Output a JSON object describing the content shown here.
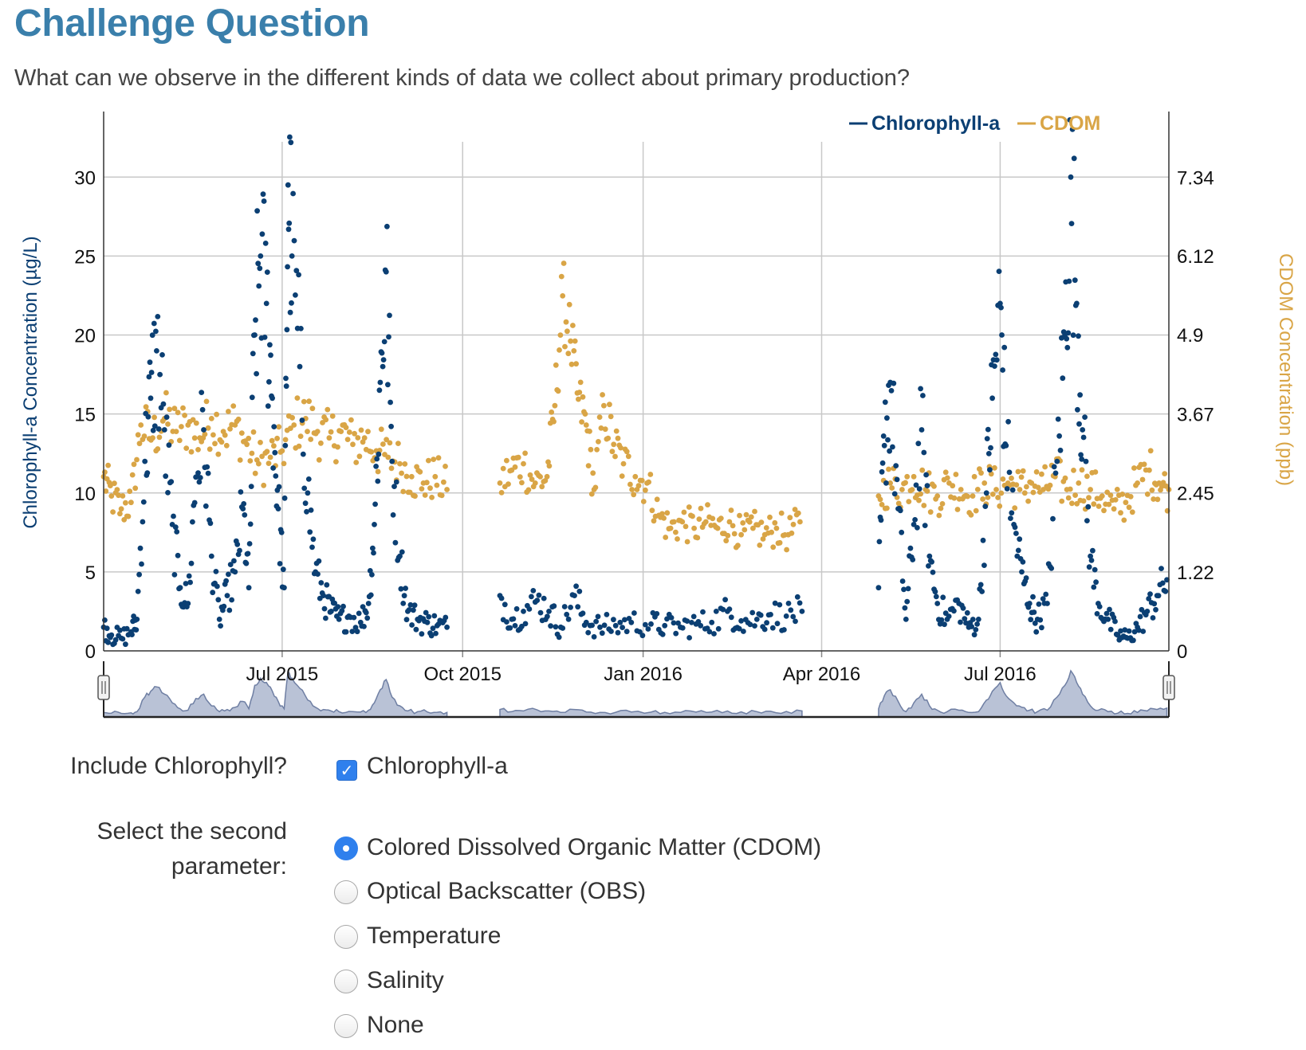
{
  "page": {
    "title": "Challenge Question",
    "question": "What can we observe in the different kinds of data we collect about primary production?"
  },
  "chart_data": {
    "type": "scatter",
    "legend": {
      "placement": "top-right",
      "entries": [
        {
          "label": "Chlorophyll-a",
          "color": "#0b3f73"
        },
        {
          "label": "CDOM",
          "color": "#d9a546"
        }
      ]
    },
    "y_left": {
      "label": "Chlorophyll-a Concentration (µg/L)",
      "ticks": [
        "0",
        "5",
        "10",
        "15",
        "20",
        "25",
        "30"
      ],
      "range": [
        0,
        34
      ]
    },
    "y_right": {
      "label": "CDOM Concentration (ppb)",
      "ticks": [
        "0",
        "1.22",
        "2.45",
        "3.67",
        "4.9",
        "6.12",
        "7.34"
      ],
      "range": [
        0,
        8.32
      ]
    },
    "x_axis": {
      "type": "date",
      "ticks": [
        "Jul 2015",
        "Oct 2015",
        "Jan 2016",
        "Apr 2016",
        "Jul 2016"
      ],
      "tick_dates": [
        "2015-07-01",
        "2015-10-01",
        "2016-01-01",
        "2016-04-01",
        "2016-07-01"
      ],
      "range": [
        "2015-04-01",
        "2016-09-25"
      ]
    },
    "grid": true,
    "navigator": true,
    "series": [
      {
        "name": "Chlorophyll-a",
        "axis": "left",
        "points": [
          [
            "2015-04-01",
            1.5
          ],
          [
            "2015-04-05",
            1.0
          ],
          [
            "2015-04-10",
            0.8
          ],
          [
            "2015-04-15",
            1.2
          ],
          [
            "2015-04-18",
            2.0
          ],
          [
            "2015-04-22",
            12.0
          ],
          [
            "2015-04-25",
            16.0
          ],
          [
            "2015-04-28",
            19.0
          ],
          [
            "2015-05-02",
            14.0
          ],
          [
            "2015-05-06",
            8.0
          ],
          [
            "2015-05-10",
            4.0
          ],
          [
            "2015-05-14",
            3.0
          ],
          [
            "2015-05-18",
            11.0
          ],
          [
            "2015-05-22",
            14.0
          ],
          [
            "2015-05-26",
            6.0
          ],
          [
            "2015-05-30",
            2.0
          ],
          [
            "2015-06-03",
            3.5
          ],
          [
            "2015-06-07",
            5.0
          ],
          [
            "2015-06-11",
            9.0
          ],
          [
            "2015-06-14",
            4.0
          ],
          [
            "2015-06-17",
            20.0
          ],
          [
            "2015-06-20",
            25.0
          ],
          [
            "2015-06-23",
            22.0
          ],
          [
            "2015-06-26",
            16.0
          ],
          [
            "2015-06-29",
            9.0
          ],
          [
            "2015-07-02",
            4.0
          ],
          [
            "2015-07-04",
            29.5
          ],
          [
            "2015-07-06",
            25.0
          ],
          [
            "2015-07-10",
            18.0
          ],
          [
            "2015-07-14",
            10.0
          ],
          [
            "2015-07-18",
            5.0
          ],
          [
            "2015-07-22",
            3.5
          ],
          [
            "2015-07-26",
            2.5
          ],
          [
            "2015-07-30",
            2.0
          ],
          [
            "2015-08-04",
            2.2
          ],
          [
            "2015-08-10",
            1.8
          ],
          [
            "2015-08-14",
            3.0
          ],
          [
            "2015-08-17",
            8.0
          ],
          [
            "2015-08-20",
            17.0
          ],
          [
            "2015-08-23",
            24.0
          ],
          [
            "2015-08-26",
            12.0
          ],
          [
            "2015-08-30",
            6.0
          ],
          [
            "2015-09-03",
            2.5
          ],
          [
            "2015-09-08",
            2.0
          ],
          [
            "2015-09-13",
            1.8
          ],
          [
            "2015-09-18",
            1.6
          ],
          [
            "2015-09-23",
            1.5
          ],
          [
            "2015-10-20",
            3.5
          ],
          [
            "2015-10-26",
            2.0
          ],
          [
            "2015-11-01",
            2.5
          ],
          [
            "2015-11-08",
            3.2
          ],
          [
            "2015-11-14",
            2.5
          ],
          [
            "2015-11-20",
            1.5
          ],
          [
            "2015-11-27",
            3.5
          ],
          [
            "2015-12-03",
            1.8
          ],
          [
            "2015-12-10",
            1.5
          ],
          [
            "2015-12-18",
            1.6
          ],
          [
            "2015-12-26",
            1.8
          ],
          [
            "2016-01-05",
            1.7
          ],
          [
            "2016-01-12",
            1.6
          ],
          [
            "2016-01-20",
            1.5
          ],
          [
            "2016-01-28",
            1.7
          ],
          [
            "2016-02-05",
            1.8
          ],
          [
            "2016-02-13",
            2.5
          ],
          [
            "2016-02-20",
            1.9
          ],
          [
            "2016-02-28",
            2.0
          ],
          [
            "2016-03-06",
            2.3
          ],
          [
            "2016-03-14",
            2.2
          ],
          [
            "2016-03-22",
            2.5
          ],
          [
            "2016-04-30",
            4.0
          ],
          [
            "2016-05-03",
            13.0
          ],
          [
            "2016-05-06",
            17.0
          ],
          [
            "2016-05-10",
            9.0
          ],
          [
            "2016-05-14",
            2.0
          ],
          [
            "2016-05-18",
            8.0
          ],
          [
            "2016-05-22",
            14.0
          ],
          [
            "2016-05-26",
            6.0
          ],
          [
            "2016-05-30",
            3.0
          ],
          [
            "2016-06-04",
            2.0
          ],
          [
            "2016-06-10",
            3.0
          ],
          [
            "2016-06-15",
            1.5
          ],
          [
            "2016-06-20",
            2.0
          ],
          [
            "2016-06-24",
            10.0
          ],
          [
            "2016-06-27",
            16.0
          ],
          [
            "2016-07-01",
            22.0
          ],
          [
            "2016-07-04",
            13.0
          ],
          [
            "2016-07-08",
            8.0
          ],
          [
            "2016-07-12",
            5.0
          ],
          [
            "2016-07-16",
            3.0
          ],
          [
            "2016-07-20",
            2.0
          ],
          [
            "2016-07-25",
            3.0
          ],
          [
            "2016-07-30",
            12.0
          ],
          [
            "2016-08-03",
            20.0
          ],
          [
            "2016-08-06",
            30.0
          ],
          [
            "2016-08-09",
            22.0
          ],
          [
            "2016-08-12",
            14.0
          ],
          [
            "2016-08-16",
            6.0
          ],
          [
            "2016-08-20",
            3.0
          ],
          [
            "2016-08-25",
            2.0
          ],
          [
            "2016-08-30",
            1.0
          ],
          [
            "2016-09-04",
            0.8
          ],
          [
            "2016-09-09",
            1.5
          ],
          [
            "2016-09-14",
            2.5
          ],
          [
            "2016-09-19",
            3.5
          ],
          [
            "2016-09-24",
            4.5
          ]
        ]
      },
      {
        "name": "CDOM",
        "axis": "right",
        "points": [
          [
            "2015-04-01",
            2.7
          ],
          [
            "2015-04-05",
            2.4
          ],
          [
            "2015-04-10",
            2.2
          ],
          [
            "2015-04-15",
            2.3
          ],
          [
            "2015-04-20",
            3.5
          ],
          [
            "2015-04-26",
            3.3
          ],
          [
            "2015-05-02",
            3.6
          ],
          [
            "2015-05-08",
            3.4
          ],
          [
            "2015-05-14",
            3.5
          ],
          [
            "2015-05-20",
            3.3
          ],
          [
            "2015-05-26",
            3.6
          ],
          [
            "2015-06-01",
            3.4
          ],
          [
            "2015-06-07",
            3.5
          ],
          [
            "2015-06-13",
            3.2
          ],
          [
            "2015-06-19",
            2.9
          ],
          [
            "2015-06-25",
            3.0
          ],
          [
            "2015-07-01",
            3.1
          ],
          [
            "2015-07-07",
            3.5
          ],
          [
            "2015-07-13",
            3.6
          ],
          [
            "2015-07-19",
            3.4
          ],
          [
            "2015-07-25",
            3.3
          ],
          [
            "2015-07-31",
            3.4
          ],
          [
            "2015-08-06",
            3.2
          ],
          [
            "2015-08-12",
            3.3
          ],
          [
            "2015-08-18",
            3.1
          ],
          [
            "2015-08-24",
            3.0
          ],
          [
            "2015-08-30",
            2.9
          ],
          [
            "2015-09-05",
            2.7
          ],
          [
            "2015-09-11",
            2.6
          ],
          [
            "2015-09-17",
            2.7
          ],
          [
            "2015-09-23",
            2.5
          ],
          [
            "2015-10-20",
            2.6
          ],
          [
            "2015-10-26",
            2.8
          ],
          [
            "2015-11-01",
            2.9
          ],
          [
            "2015-11-07",
            2.6
          ],
          [
            "2015-11-13",
            2.7
          ],
          [
            "2015-11-17",
            3.8
          ],
          [
            "2015-11-21",
            5.5
          ],
          [
            "2015-11-25",
            4.8
          ],
          [
            "2015-11-29",
            3.9
          ],
          [
            "2015-12-03",
            3.5
          ],
          [
            "2015-12-07",
            2.5
          ],
          [
            "2015-12-12",
            3.8
          ],
          [
            "2015-12-17",
            3.2
          ],
          [
            "2015-12-22",
            2.9
          ],
          [
            "2015-12-28",
            2.7
          ],
          [
            "2016-01-03",
            2.6
          ],
          [
            "2016-01-09",
            2.1
          ],
          [
            "2016-01-15",
            1.9
          ],
          [
            "2016-01-21",
            2.0
          ],
          [
            "2016-01-27",
            1.9
          ],
          [
            "2016-02-02",
            2.0
          ],
          [
            "2016-02-08",
            1.9
          ],
          [
            "2016-02-14",
            2.0
          ],
          [
            "2016-02-20",
            1.8
          ],
          [
            "2016-02-26",
            1.9
          ],
          [
            "2016-03-03",
            1.8
          ],
          [
            "2016-03-09",
            1.9
          ],
          [
            "2016-03-15",
            1.8
          ],
          [
            "2016-03-21",
            2.0
          ],
          [
            "2016-04-30",
            2.4
          ],
          [
            "2016-05-06",
            2.6
          ],
          [
            "2016-05-12",
            2.5
          ],
          [
            "2016-05-18",
            2.7
          ],
          [
            "2016-05-24",
            2.5
          ],
          [
            "2016-05-30",
            2.4
          ],
          [
            "2016-06-05",
            2.6
          ],
          [
            "2016-06-11",
            2.5
          ],
          [
            "2016-06-17",
            2.4
          ],
          [
            "2016-06-23",
            2.6
          ],
          [
            "2016-06-29",
            2.5
          ],
          [
            "2016-07-05",
            2.6
          ],
          [
            "2016-07-11",
            2.5
          ],
          [
            "2016-07-17",
            2.6
          ],
          [
            "2016-07-23",
            2.5
          ],
          [
            "2016-07-29",
            2.7
          ],
          [
            "2016-08-04",
            2.5
          ],
          [
            "2016-08-10",
            2.6
          ],
          [
            "2016-08-16",
            2.5
          ],
          [
            "2016-08-22",
            2.4
          ],
          [
            "2016-08-28",
            2.2
          ],
          [
            "2016-09-03",
            2.3
          ],
          [
            "2016-09-09",
            2.6
          ],
          [
            "2016-09-15",
            2.8
          ],
          [
            "2016-09-20",
            2.6
          ],
          [
            "2016-09-25",
            2.5
          ]
        ]
      }
    ]
  },
  "controls": {
    "include_label": "Include Chlorophyll?",
    "chlorophyll_option": "Chlorophyll-a",
    "chlorophyll_checked": true,
    "second_label_line1": "Select the second",
    "second_label_line2": "parameter:",
    "options": [
      {
        "label": "Colored Dissolved Organic Matter (CDOM)",
        "checked": true
      },
      {
        "label": "Optical Backscatter (OBS)",
        "checked": false
      },
      {
        "label": "Temperature",
        "checked": false
      },
      {
        "label": "Salinity",
        "checked": false
      },
      {
        "label": "None",
        "checked": false
      }
    ]
  }
}
